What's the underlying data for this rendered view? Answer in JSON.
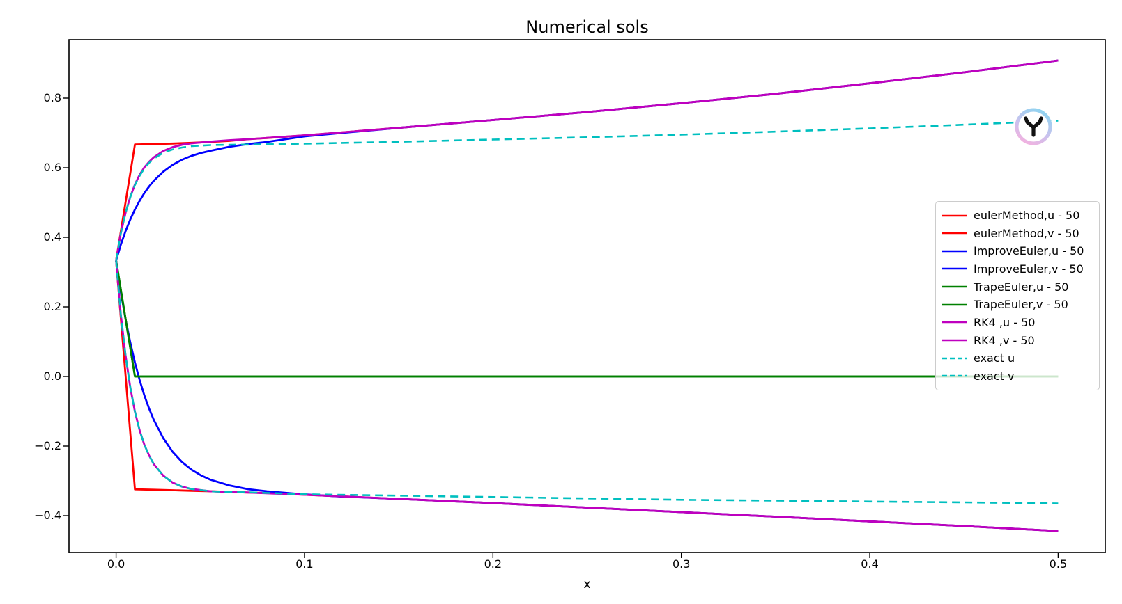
{
  "chart_data": {
    "type": "line",
    "title": "Numerical sols",
    "xlabel": "x",
    "ylabel": "",
    "grid": false,
    "legend_position": "center right",
    "xlim": [
      -0.025,
      0.525
    ],
    "ylim": [
      -0.506,
      0.968
    ],
    "x_ticks": [
      0.0,
      0.1,
      0.2,
      0.3,
      0.4,
      0.5
    ],
    "x_tick_labels": [
      "0.0",
      "0.1",
      "0.2",
      "0.3",
      "0.4",
      "0.5"
    ],
    "y_ticks": [
      0.8,
      0.6,
      0.4,
      0.2,
      0.0,
      -0.2,
      -0.4
    ],
    "y_tick_labels": [
      "0.8",
      "0.6",
      "0.4",
      "0.2",
      "0.0",
      "−0.2",
      "−0.4"
    ],
    "series": [
      {
        "name": "eulerMethod,u - 50",
        "color": "#ff0000",
        "style": "solid",
        "points": [
          [
            0,
            0.3333
          ],
          [
            0.01,
            0.6667
          ],
          [
            0.02,
            0.668
          ],
          [
            0.03,
            0.6695
          ],
          [
            0.04,
            0.6715
          ],
          [
            0.05,
            0.674
          ],
          [
            0.06,
            0.677
          ],
          [
            0.07,
            0.682
          ],
          [
            0.08,
            0.6855
          ],
          [
            0.1,
            0.693
          ],
          [
            0.15,
            0.7145
          ],
          [
            0.2,
            0.737
          ],
          [
            0.25,
            0.76
          ],
          [
            0.3,
            0.7855
          ],
          [
            0.35,
            0.8125
          ],
          [
            0.4,
            0.8425
          ],
          [
            0.45,
            0.874
          ],
          [
            0.5,
            0.908
          ]
        ]
      },
      {
        "name": "eulerMethod,v - 50",
        "color": "#ff0000",
        "style": "solid",
        "points": [
          [
            0,
            0.3333
          ],
          [
            0.01,
            -0.3243
          ],
          [
            0.02,
            -0.3256
          ],
          [
            0.03,
            -0.327
          ],
          [
            0.04,
            -0.3285
          ],
          [
            0.05,
            -0.33
          ],
          [
            0.06,
            -0.3315
          ],
          [
            0.07,
            -0.3335
          ],
          [
            0.08,
            -0.335
          ],
          [
            0.1,
            -0.34
          ],
          [
            0.15,
            -0.352
          ],
          [
            0.2,
            -0.364
          ],
          [
            0.25,
            -0.377
          ],
          [
            0.3,
            -0.39
          ],
          [
            0.35,
            -0.403
          ],
          [
            0.4,
            -0.4165
          ],
          [
            0.45,
            -0.43
          ],
          [
            0.5,
            -0.4443
          ]
        ]
      },
      {
        "name": "ImproveEuler,u - 50",
        "color": "#0000ff",
        "style": "solid",
        "points": [
          [
            0,
            0.3333
          ],
          [
            0.0025,
            0.3783
          ],
          [
            0.005,
            0.4173
          ],
          [
            0.0075,
            0.451
          ],
          [
            0.01,
            0.48
          ],
          [
            0.0125,
            0.5053
          ],
          [
            0.015,
            0.527
          ],
          [
            0.0175,
            0.546
          ],
          [
            0.02,
            0.5623
          ],
          [
            0.025,
            0.5887
          ],
          [
            0.03,
            0.6083
          ],
          [
            0.035,
            0.623
          ],
          [
            0.04,
            0.6339
          ],
          [
            0.045,
            0.6422
          ],
          [
            0.05,
            0.6483
          ],
          [
            0.06,
            0.66
          ],
          [
            0.07,
            0.668
          ],
          [
            0.08,
            0.674
          ],
          [
            0.09,
            0.682
          ],
          [
            0.1,
            0.69
          ],
          [
            0.12,
            0.7
          ],
          [
            0.15,
            0.7145
          ],
          [
            0.2,
            0.737
          ],
          [
            0.25,
            0.76
          ],
          [
            0.3,
            0.7855
          ],
          [
            0.35,
            0.8125
          ],
          [
            0.4,
            0.8425
          ],
          [
            0.45,
            0.874
          ],
          [
            0.5,
            0.908
          ]
        ]
      },
      {
        "name": "ImproveEuler,v - 50",
        "color": "#0000ff",
        "style": "solid",
        "points": [
          [
            0,
            0.3333
          ],
          [
            0.0025,
            0.2433
          ],
          [
            0.005,
            0.1653
          ],
          [
            0.0075,
            0.098
          ],
          [
            0.01,
            0.04
          ],
          [
            0.0125,
            -0.0107
          ],
          [
            0.015,
            -0.054
          ],
          [
            0.0175,
            -0.092
          ],
          [
            0.02,
            -0.1247
          ],
          [
            0.025,
            -0.1773
          ],
          [
            0.03,
            -0.2166
          ],
          [
            0.035,
            -0.246
          ],
          [
            0.04,
            -0.2677
          ],
          [
            0.045,
            -0.2843
          ],
          [
            0.05,
            -0.2966
          ],
          [
            0.06,
            -0.313
          ],
          [
            0.07,
            -0.324
          ],
          [
            0.08,
            -0.33
          ],
          [
            0.09,
            -0.3345
          ],
          [
            0.1,
            -0.339
          ],
          [
            0.12,
            -0.3455
          ],
          [
            0.15,
            -0.352
          ],
          [
            0.2,
            -0.364
          ],
          [
            0.25,
            -0.377
          ],
          [
            0.3,
            -0.39
          ],
          [
            0.35,
            -0.403
          ],
          [
            0.4,
            -0.4165
          ],
          [
            0.45,
            -0.43
          ],
          [
            0.5,
            -0.4443
          ]
        ]
      },
      {
        "name": "TrapeEuler,u - 50",
        "color": "#008000",
        "style": "solid",
        "points": [
          [
            0,
            0.3333
          ],
          [
            0.01,
            0.0
          ],
          [
            0.5,
            0.0
          ]
        ]
      },
      {
        "name": "TrapeEuler,v - 50",
        "color": "#008000",
        "style": "solid",
        "points": [
          [
            0,
            0.3333
          ],
          [
            0.01,
            0.0
          ],
          [
            0.5,
            0.0
          ]
        ]
      },
      {
        "name": "RK4 ,u - 50",
        "color": "#bf00bf",
        "style": "solid",
        "points": [
          [
            0,
            0.3333
          ],
          [
            0.0025,
            0.411
          ],
          [
            0.005,
            0.47
          ],
          [
            0.0075,
            0.516
          ],
          [
            0.01,
            0.552
          ],
          [
            0.0125,
            0.58
          ],
          [
            0.015,
            0.601
          ],
          [
            0.0175,
            0.617
          ],
          [
            0.02,
            0.63
          ],
          [
            0.025,
            0.648
          ],
          [
            0.03,
            0.659
          ],
          [
            0.035,
            0.666
          ],
          [
            0.04,
            0.67
          ],
          [
            0.05,
            0.675
          ],
          [
            0.06,
            0.679
          ],
          [
            0.07,
            0.682
          ],
          [
            0.1,
            0.693
          ],
          [
            0.15,
            0.7145
          ],
          [
            0.2,
            0.737
          ],
          [
            0.25,
            0.76
          ],
          [
            0.3,
            0.7855
          ],
          [
            0.35,
            0.8125
          ],
          [
            0.4,
            0.8425
          ],
          [
            0.45,
            0.874
          ],
          [
            0.5,
            0.908
          ]
        ]
      },
      {
        "name": "RK4 ,v - 50",
        "color": "#bf00bf",
        "style": "solid",
        "points": [
          [
            0,
            0.3333
          ],
          [
            0.0025,
            0.179
          ],
          [
            0.005,
            0.061
          ],
          [
            0.0075,
            -0.031
          ],
          [
            0.01,
            -0.101
          ],
          [
            0.0125,
            -0.155
          ],
          [
            0.015,
            -0.196
          ],
          [
            0.0175,
            -0.227
          ],
          [
            0.02,
            -0.252
          ],
          [
            0.025,
            -0.285
          ],
          [
            0.03,
            -0.305
          ],
          [
            0.035,
            -0.3165
          ],
          [
            0.04,
            -0.3234
          ],
          [
            0.05,
            -0.33
          ],
          [
            0.06,
            -0.332
          ],
          [
            0.07,
            -0.3335
          ],
          [
            0.1,
            -0.34
          ],
          [
            0.15,
            -0.352
          ],
          [
            0.2,
            -0.364
          ],
          [
            0.25,
            -0.377
          ],
          [
            0.3,
            -0.39
          ],
          [
            0.35,
            -0.403
          ],
          [
            0.4,
            -0.4165
          ],
          [
            0.45,
            -0.43
          ],
          [
            0.5,
            -0.4443
          ]
        ]
      },
      {
        "name": "exact u",
        "color": "#00bfbf",
        "style": "dashed",
        "points": [
          [
            0,
            0.3333
          ],
          [
            0.0025,
            0.411
          ],
          [
            0.005,
            0.47
          ],
          [
            0.0075,
            0.515
          ],
          [
            0.01,
            0.55
          ],
          [
            0.0125,
            0.577
          ],
          [
            0.015,
            0.598
          ],
          [
            0.0175,
            0.614
          ],
          [
            0.02,
            0.626
          ],
          [
            0.025,
            0.643
          ],
          [
            0.03,
            0.6525
          ],
          [
            0.035,
            0.658
          ],
          [
            0.04,
            0.662
          ],
          [
            0.05,
            0.665
          ],
          [
            0.06,
            0.666
          ],
          [
            0.07,
            0.6665
          ],
          [
            0.1,
            0.669
          ],
          [
            0.15,
            0.6745
          ],
          [
            0.2,
            0.681
          ],
          [
            0.25,
            0.6875
          ],
          [
            0.3,
            0.695
          ],
          [
            0.35,
            0.7035
          ],
          [
            0.4,
            0.713
          ],
          [
            0.45,
            0.7235
          ],
          [
            0.5,
            0.735
          ]
        ]
      },
      {
        "name": "exact v",
        "color": "#00bfbf",
        "style": "dashed",
        "points": [
          [
            0,
            0.3333
          ],
          [
            0.0025,
            0.179
          ],
          [
            0.005,
            0.0607
          ],
          [
            0.0075,
            -0.0307
          ],
          [
            0.01,
            -0.1007
          ],
          [
            0.0125,
            -0.1547
          ],
          [
            0.015,
            -0.196
          ],
          [
            0.0175,
            -0.2273
          ],
          [
            0.02,
            -0.252
          ],
          [
            0.025,
            -0.2853
          ],
          [
            0.03,
            -0.305
          ],
          [
            0.035,
            -0.3165
          ],
          [
            0.04,
            -0.3234
          ],
          [
            0.05,
            -0.3299
          ],
          [
            0.06,
            -0.3321
          ],
          [
            0.07,
            -0.333
          ],
          [
            0.1,
            -0.3385
          ],
          [
            0.15,
            -0.3425
          ],
          [
            0.2,
            -0.3465
          ],
          [
            0.25,
            -0.3505
          ],
          [
            0.3,
            -0.3545
          ],
          [
            0.35,
            -0.357
          ],
          [
            0.4,
            -0.3595
          ],
          [
            0.45,
            -0.362
          ],
          [
            0.5,
            -0.365
          ]
        ]
      }
    ]
  },
  "legend": {
    "items": [
      {
        "label": "eulerMethod,u - 50",
        "color": "#ff0000",
        "dashed": false
      },
      {
        "label": "eulerMethod,v - 50",
        "color": "#ff0000",
        "dashed": false
      },
      {
        "label": "ImproveEuler,u - 50",
        "color": "#0000ff",
        "dashed": false
      },
      {
        "label": "ImproveEuler,v - 50",
        "color": "#0000ff",
        "dashed": false
      },
      {
        "label": "TrapeEuler,u - 50",
        "color": "#008000",
        "dashed": false
      },
      {
        "label": "TrapeEuler,v - 50",
        "color": "#008000",
        "dashed": false
      },
      {
        "label": "RK4 ,u - 50",
        "color": "#bf00bf",
        "dashed": false
      },
      {
        "label": "RK4 ,v - 50",
        "color": "#bf00bf",
        "dashed": false
      },
      {
        "label": "exact u",
        "color": "#00bfbf",
        "dashed": true
      },
      {
        "label": "exact v",
        "color": "#00bfbf",
        "dashed": true
      }
    ]
  },
  "logo": {
    "ring_gradient": [
      "#8fd4f0",
      "#c9c2ee",
      "#f2b2e0"
    ],
    "glyph_color": "#121212",
    "background": "#ffffff"
  },
  "axes": {
    "spine_color": "#000000",
    "tick_color": "#000000"
  }
}
